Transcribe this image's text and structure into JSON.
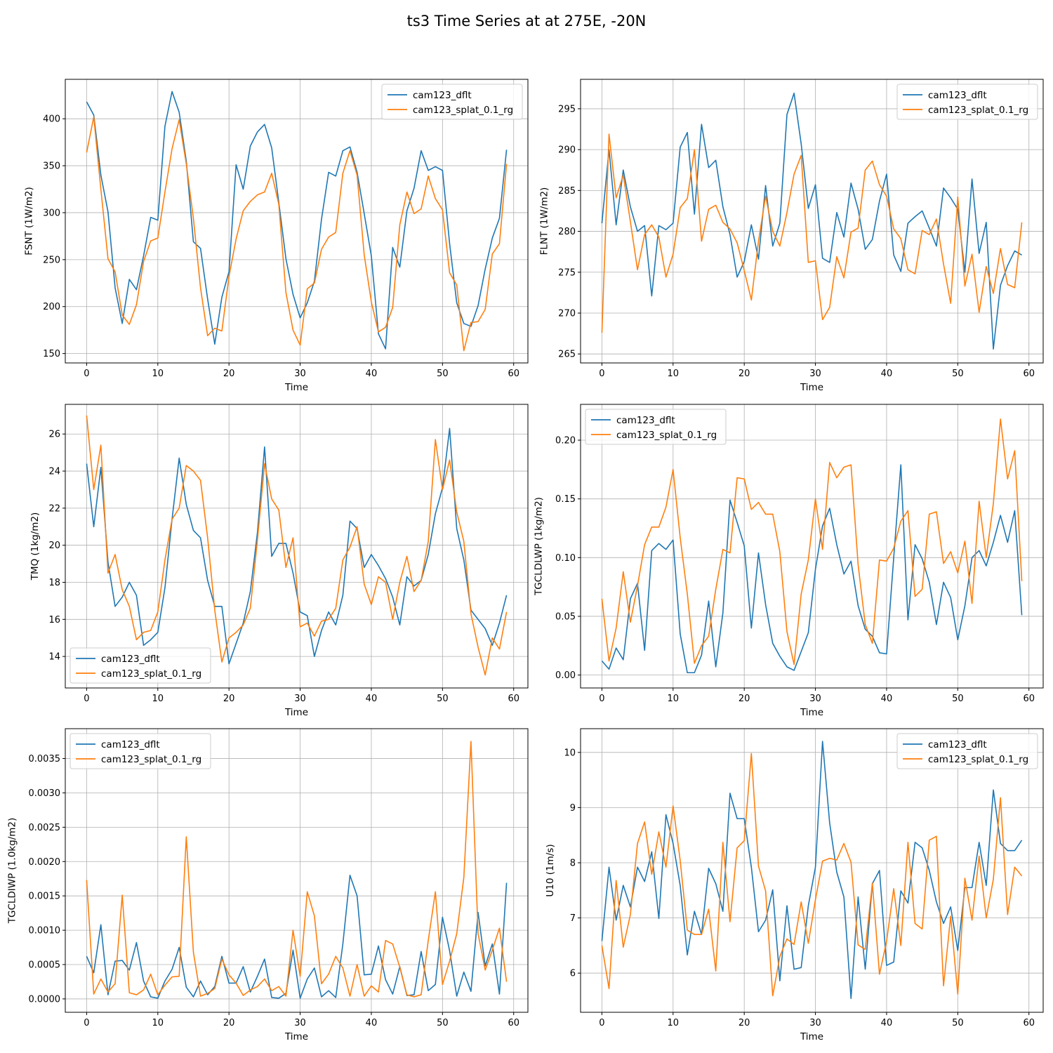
{
  "title": "ts3 Time Series at at 275E, -20N",
  "colors": {
    "series_1": "#1f77b4",
    "series_2": "#ff7f0e",
    "grid": "#b0b0b0"
  },
  "chart_data": [
    {
      "type": "line",
      "title": "",
      "xlabel": "Time",
      "ylabel": "FSNT (1W/m2)",
      "xlim": [
        -3,
        62
      ],
      "ylim": [
        140,
        442
      ],
      "xticks": [
        0,
        10,
        20,
        30,
        40,
        50,
        60
      ],
      "yticks": [
        150,
        200,
        250,
        300,
        350,
        400
      ],
      "ytick_labels": [
        "150",
        "200",
        "250",
        "300",
        "350",
        "400"
      ],
      "grid": true,
      "legend": "upper right",
      "x_start": 0,
      "series": [
        {
          "name": "cam123_dflt",
          "color": "#1f77b4",
          "values": [
            418,
            404,
            340,
            301,
            220,
            182,
            229,
            218,
            254,
            295,
            292,
            392,
            429,
            407,
            355,
            269,
            262,
            208,
            160,
            210,
            237,
            351,
            325,
            371,
            386,
            394,
            369,
            311,
            251,
            213,
            188,
            204,
            227,
            293,
            343,
            339,
            366,
            370,
            343,
            299,
            254,
            171,
            155,
            263,
            242,
            302,
            326,
            366,
            345,
            349,
            345,
            267,
            204,
            182,
            179,
            201,
            240,
            273,
            294,
            367
          ]
        },
        {
          "name": "cam123_splat_0.1_rg",
          "color": "#ff7f0e",
          "values": [
            364,
            402,
            325,
            251,
            237,
            191,
            181,
            202,
            248,
            270,
            273,
            322,
            368,
            399,
            352,
            294,
            220,
            169,
            177,
            174,
            232,
            272,
            302,
            312,
            319,
            322,
            342,
            309,
            215,
            175,
            159,
            219,
            225,
            261,
            274,
            279,
            342,
            366,
            340,
            255,
            205,
            173,
            178,
            199,
            287,
            322,
            299,
            304,
            339,
            315,
            303,
            236,
            223,
            153,
            183,
            184,
            197,
            256,
            267,
            352
          ]
        }
      ]
    },
    {
      "type": "line",
      "title": "",
      "xlabel": "Time",
      "ylabel": "FLNT (1W/m2)",
      "xlim": [
        -3,
        62
      ],
      "ylim": [
        263.9,
        298.6
      ],
      "xticks": [
        0,
        10,
        20,
        30,
        40,
        50,
        60
      ],
      "yticks": [
        265,
        270,
        275,
        280,
        285,
        290,
        295
      ],
      "ytick_labels": [
        "265",
        "270",
        "275",
        "280",
        "285",
        "290",
        "295"
      ],
      "grid": true,
      "legend": "upper right",
      "x_start": 0,
      "series": [
        {
          "name": "cam123_dflt",
          "color": "#1f77b4",
          "values": [
            281,
            290,
            280.8,
            287.5,
            283,
            280,
            280.7,
            272.1,
            280.7,
            280.2,
            281,
            290.3,
            292.1,
            282.1,
            293.1,
            287.8,
            288.7,
            283,
            279.6,
            274.4,
            276.3,
            280.8,
            276.6,
            285.6,
            278.2,
            281,
            294.3,
            296.9,
            290.7,
            282.8,
            285.7,
            276.7,
            276.2,
            282.3,
            279.3,
            285.9,
            282.7,
            277.8,
            279,
            283.7,
            287,
            277.1,
            275.1,
            281,
            281.8,
            282.5,
            280.4,
            278.2,
            285.3,
            284.1,
            282.7,
            275,
            286.4,
            277.3,
            281.1,
            265.6,
            273.4,
            275.8,
            277.6,
            277.1
          ]
        },
        {
          "name": "cam123_splat_0.1_rg",
          "color": "#ff7f0e",
          "values": [
            267.6,
            291.9,
            284.1,
            286.9,
            281.2,
            275.3,
            279.6,
            280.8,
            279.3,
            274.4,
            277.2,
            282.9,
            284,
            290,
            278.8,
            282.7,
            283.2,
            281.1,
            280.3,
            278.6,
            275.2,
            271.6,
            278.8,
            284.3,
            280,
            278.2,
            282.3,
            287,
            289.3,
            276.2,
            276.4,
            269.2,
            270.7,
            276.9,
            274.3,
            279.9,
            280.4,
            287.5,
            288.6,
            285.7,
            284.3,
            280.3,
            279.1,
            275.3,
            274.8,
            280.1,
            279.6,
            281.5,
            276,
            271.2,
            284.2,
            273.3,
            277.2,
            270.1,
            275.7,
            272.4,
            277.9,
            273.5,
            273.1,
            281.1
          ]
        }
      ]
    },
    {
      "type": "line",
      "title": "",
      "xlabel": "Time",
      "ylabel": "TMQ (1kg/m2)",
      "xlim": [
        -3,
        62
      ],
      "ylim": [
        12.3,
        27.6
      ],
      "xticks": [
        0,
        10,
        20,
        30,
        40,
        50,
        60
      ],
      "yticks": [
        14,
        16,
        18,
        20,
        22,
        24,
        26
      ],
      "ytick_labels": [
        "14",
        "16",
        "18",
        "20",
        "22",
        "24",
        "26"
      ],
      "grid": true,
      "legend": "lower left",
      "x_start": 0,
      "series": [
        {
          "name": "cam123_dflt",
          "color": "#1f77b4",
          "values": [
            24.4,
            21,
            24.2,
            19.1,
            16.7,
            17.2,
            18,
            17.3,
            14.6,
            14.9,
            15.3,
            17.7,
            21.4,
            24.7,
            22.2,
            20.8,
            20.4,
            18.1,
            16.7,
            16.7,
            13.6,
            14.7,
            15.8,
            17.5,
            20.7,
            25.3,
            19.4,
            20.1,
            20.1,
            18.5,
            16.4,
            16.2,
            14,
            15.4,
            16.4,
            15.7,
            17.3,
            21.3,
            20.9,
            18.8,
            19.5,
            18.9,
            18.2,
            17.2,
            15.7,
            18.3,
            17.8,
            18.1,
            19.5,
            21.7,
            23.1,
            26.3,
            20.9,
            19.2,
            16.5,
            16,
            15.5,
            14.6,
            15.8,
            17.3
          ]
        },
        {
          "name": "cam123_splat_0.1_rg",
          "color": "#ff7f0e",
          "values": [
            27,
            23,
            25.4,
            18.5,
            19.5,
            17.6,
            16.7,
            14.9,
            15.3,
            15.4,
            16.4,
            19.2,
            21.4,
            22,
            24.3,
            24,
            23.5,
            20.4,
            16.5,
            13.7,
            15,
            15.3,
            15.7,
            16.6,
            20.3,
            24.4,
            22.5,
            21.9,
            18.8,
            20.4,
            15.6,
            15.8,
            15.1,
            15.9,
            16,
            16.6,
            19.2,
            19.9,
            21,
            17.9,
            16.8,
            18.3,
            18,
            16,
            18,
            19.4,
            17.5,
            18.1,
            20.2,
            25.7,
            23,
            24.6,
            21.8,
            20.2,
            16.3,
            14.5,
            13,
            15,
            14.4,
            16.4
          ]
        }
      ]
    },
    {
      "type": "line",
      "title": "",
      "xlabel": "Time",
      "ylabel": "TGCLDLWP (1kg/m2)",
      "xlim": [
        -3,
        62
      ],
      "ylim": [
        -0.011,
        0.2305
      ],
      "xticks": [
        0,
        10,
        20,
        30,
        40,
        50,
        60
      ],
      "yticks": [
        0,
        0.05,
        0.1,
        0.15,
        0.2
      ],
      "ytick_labels": [
        "0.00",
        "0.05",
        "0.10",
        "0.15",
        "0.20"
      ],
      "grid": true,
      "legend": "upper left",
      "x_start": 0,
      "series": [
        {
          "name": "cam123_dflt",
          "color": "#1f77b4",
          "values": [
            0.012,
            0.005,
            0.023,
            0.013,
            0.065,
            0.078,
            0.021,
            0.106,
            0.112,
            0.107,
            0.115,
            0.035,
            0.002,
            0.002,
            0.017,
            0.063,
            0.007,
            0.053,
            0.149,
            0.13,
            0.11,
            0.04,
            0.104,
            0.06,
            0.027,
            0.016,
            0.007,
            0.004,
            0.02,
            0.036,
            0.09,
            0.127,
            0.142,
            0.111,
            0.086,
            0.097,
            0.059,
            0.039,
            0.033,
            0.019,
            0.018,
            0.1,
            0.179,
            0.047,
            0.111,
            0.099,
            0.079,
            0.043,
            0.079,
            0.066,
            0.03,
            0.059,
            0.1,
            0.106,
            0.093,
            0.113,
            0.136,
            0.113,
            0.14,
            0.051
          ]
        },
        {
          "name": "cam123_splat_0.1_rg",
          "color": "#ff7f0e",
          "values": [
            0.065,
            0.012,
            0.04,
            0.088,
            0.045,
            0.076,
            0.111,
            0.126,
            0.126,
            0.143,
            0.175,
            0.117,
            0.069,
            0.01,
            0.025,
            0.033,
            0.073,
            0.107,
            0.104,
            0.168,
            0.167,
            0.141,
            0.147,
            0.137,
            0.137,
            0.105,
            0.037,
            0.009,
            0.069,
            0.098,
            0.15,
            0.107,
            0.181,
            0.168,
            0.177,
            0.179,
            0.094,
            0.043,
            0.027,
            0.098,
            0.097,
            0.108,
            0.131,
            0.14,
            0.067,
            0.073,
            0.137,
            0.139,
            0.095,
            0.105,
            0.087,
            0.114,
            0.061,
            0.148,
            0.1,
            0.146,
            0.218,
            0.167,
            0.191,
            0.08
          ]
        }
      ]
    },
    {
      "type": "line",
      "title": "",
      "xlabel": "Time",
      "ylabel": "TGCLDIWP (1.0kg/m2)",
      "xlim": [
        -3,
        62
      ],
      "ylim": [
        -0.000195,
        0.003935
      ],
      "xticks": [
        0,
        10,
        20,
        30,
        40,
        50,
        60
      ],
      "yticks": [
        0,
        0.0005,
        0.001,
        0.0015,
        0.002,
        0.0025,
        0.003,
        0.0035
      ],
      "ytick_labels": [
        "0.0000",
        "0.0005",
        "0.0010",
        "0.0015",
        "0.0020",
        "0.0025",
        "0.0030",
        "0.0035"
      ],
      "grid": true,
      "legend": "upper left",
      "x_start": 0,
      "series": [
        {
          "name": "cam123_dflt",
          "color": "#1f77b4",
          "values": [
            0.00062,
            0.00038,
            0.00108,
            6e-05,
            0.00055,
            0.00056,
            0.00042,
            0.00082,
            0.00026,
            3e-05,
            1e-05,
            0.00026,
            0.00043,
            0.00075,
            0.00017,
            3e-05,
            0.00026,
            6e-05,
            0.00018,
            0.00062,
            0.00023,
            0.00023,
            0.00047,
            0.0001,
            0.00033,
            0.00058,
            2e-05,
            1e-05,
            8e-05,
            0.00071,
            1e-05,
            0.00029,
            0.00045,
            3e-05,
            0.00012,
            2e-05,
            0.0008,
            0.0018,
            0.0015,
            0.00035,
            0.00036,
            0.00077,
            0.00028,
            7e-05,
            0.00047,
            5e-05,
            6e-05,
            0.00069,
            0.00012,
            0.00021,
            0.00119,
            0.0007,
            4e-05,
            0.00039,
            0.00011,
            0.00126,
            0.00048,
            0.0008,
            7e-05,
            0.00169
          ]
        },
        {
          "name": "cam123_splat_0.1_rg",
          "color": "#ff7f0e",
          "values": [
            0.00173,
            7e-05,
            0.00029,
            0.0001,
            0.00022,
            0.00151,
            9e-05,
            6e-05,
            0.00013,
            0.00036,
            6e-05,
            0.0002,
            0.00032,
            0.00033,
            0.00236,
            0.00068,
            4e-05,
            8e-05,
            0.00015,
            0.00058,
            0.00035,
            0.00023,
            5e-05,
            0.00013,
            0.00018,
            0.00029,
            0.00012,
            0.00018,
            4e-05,
            0.001,
            0.00033,
            0.00156,
            0.00121,
            0.00022,
            0.00036,
            0.00062,
            0.00045,
            4e-05,
            0.0005,
            4e-05,
            0.00019,
            0.0001,
            0.00085,
            0.0008,
            0.00046,
            6e-05,
            3e-05,
            6e-05,
            0.00085,
            0.00156,
            0.00021,
            0.00055,
            0.00095,
            0.00177,
            0.00375,
            0.00095,
            0.00042,
            0.00071,
            0.00103,
            0.00025
          ]
        }
      ]
    },
    {
      "type": "line",
      "title": "",
      "xlabel": "Time",
      "ylabel": "U10 (1m/s)",
      "xlim": [
        -3,
        62
      ],
      "ylim": [
        5.29,
        10.43
      ],
      "xticks": [
        0,
        10,
        20,
        30,
        40,
        50,
        60
      ],
      "yticks": [
        6,
        7,
        8,
        9,
        10
      ],
      "ytick_labels": [
        "6",
        "7",
        "8",
        "9",
        "10"
      ],
      "grid": true,
      "legend": "upper right",
      "x_start": 0,
      "series": [
        {
          "name": "cam123_dflt",
          "color": "#1f77b4",
          "values": [
            6.58,
            7.92,
            6.96,
            7.59,
            7.2,
            7.92,
            7.66,
            8.2,
            6.99,
            8.87,
            8.35,
            7.59,
            6.33,
            7.12,
            6.7,
            7.9,
            7.62,
            7.12,
            9.26,
            8.8,
            8.8,
            7.92,
            6.75,
            6.96,
            7.51,
            5.86,
            7.22,
            6.07,
            6.1,
            7.22,
            7.92,
            10.2,
            8.72,
            7.83,
            7.38,
            5.54,
            7.38,
            6.07,
            7.62,
            7.86,
            6.14,
            6.2,
            7.49,
            7.27,
            8.37,
            8.27,
            7.86,
            7.29,
            6.9,
            7.2,
            6.41,
            7.55,
            7.55,
            8.37,
            7.59,
            9.32,
            8.35,
            8.22,
            8.22,
            8.41
          ]
        },
        {
          "name": "cam123_splat_0.1_rg",
          "color": "#ff7f0e",
          "values": [
            6.5,
            5.72,
            7.68,
            6.47,
            7.06,
            8.35,
            8.74,
            7.79,
            8.56,
            7.92,
            9.03,
            8.04,
            6.78,
            6.7,
            6.7,
            7.16,
            6.04,
            8.37,
            6.93,
            8.27,
            8.4,
            9.98,
            7.94,
            7.49,
            5.59,
            6.3,
            6.62,
            6.52,
            7.29,
            6.54,
            7.33,
            8.03,
            8.08,
            8.05,
            8.35,
            8.01,
            6.51,
            6.43,
            7.63,
            5.98,
            6.58,
            7.53,
            6.5,
            8.37,
            6.9,
            6.8,
            8.41,
            8.48,
            5.77,
            7.03,
            5.62,
            7.72,
            6.96,
            8.12,
            7.0,
            7.7,
            9.18,
            7.06,
            7.92,
            7.76
          ]
        }
      ]
    }
  ]
}
